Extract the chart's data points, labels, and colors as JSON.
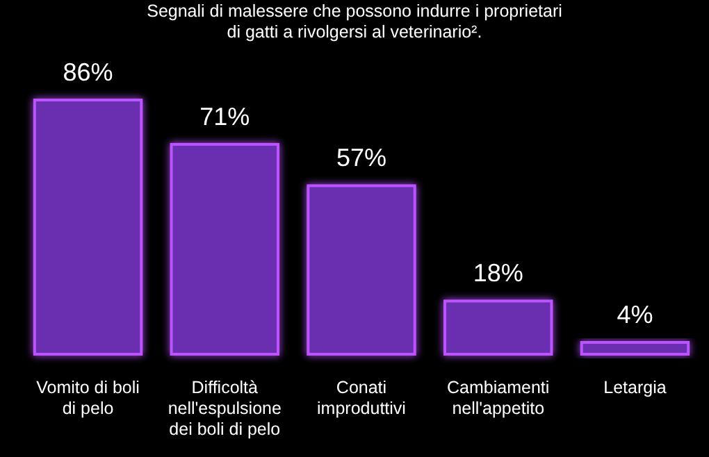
{
  "chart_data": {
    "type": "bar",
    "title": "Segnali di malessere che possono indurre i proprietari di gatti a rivolgersi al veterinario².",
    "categories": [
      "Vomito di boli di pelo",
      "Difficoltà nell'espulsione dei boli di pelo",
      "Conati improduttivi",
      "Cambiamenti nell'appetito",
      "Letargia"
    ],
    "values": [
      86,
      71,
      57,
      18,
      4
    ],
    "value_labels": [
      "86%",
      "71%",
      "57%",
      "18%",
      "4%"
    ],
    "color": "#6a2fb0"
  }
}
